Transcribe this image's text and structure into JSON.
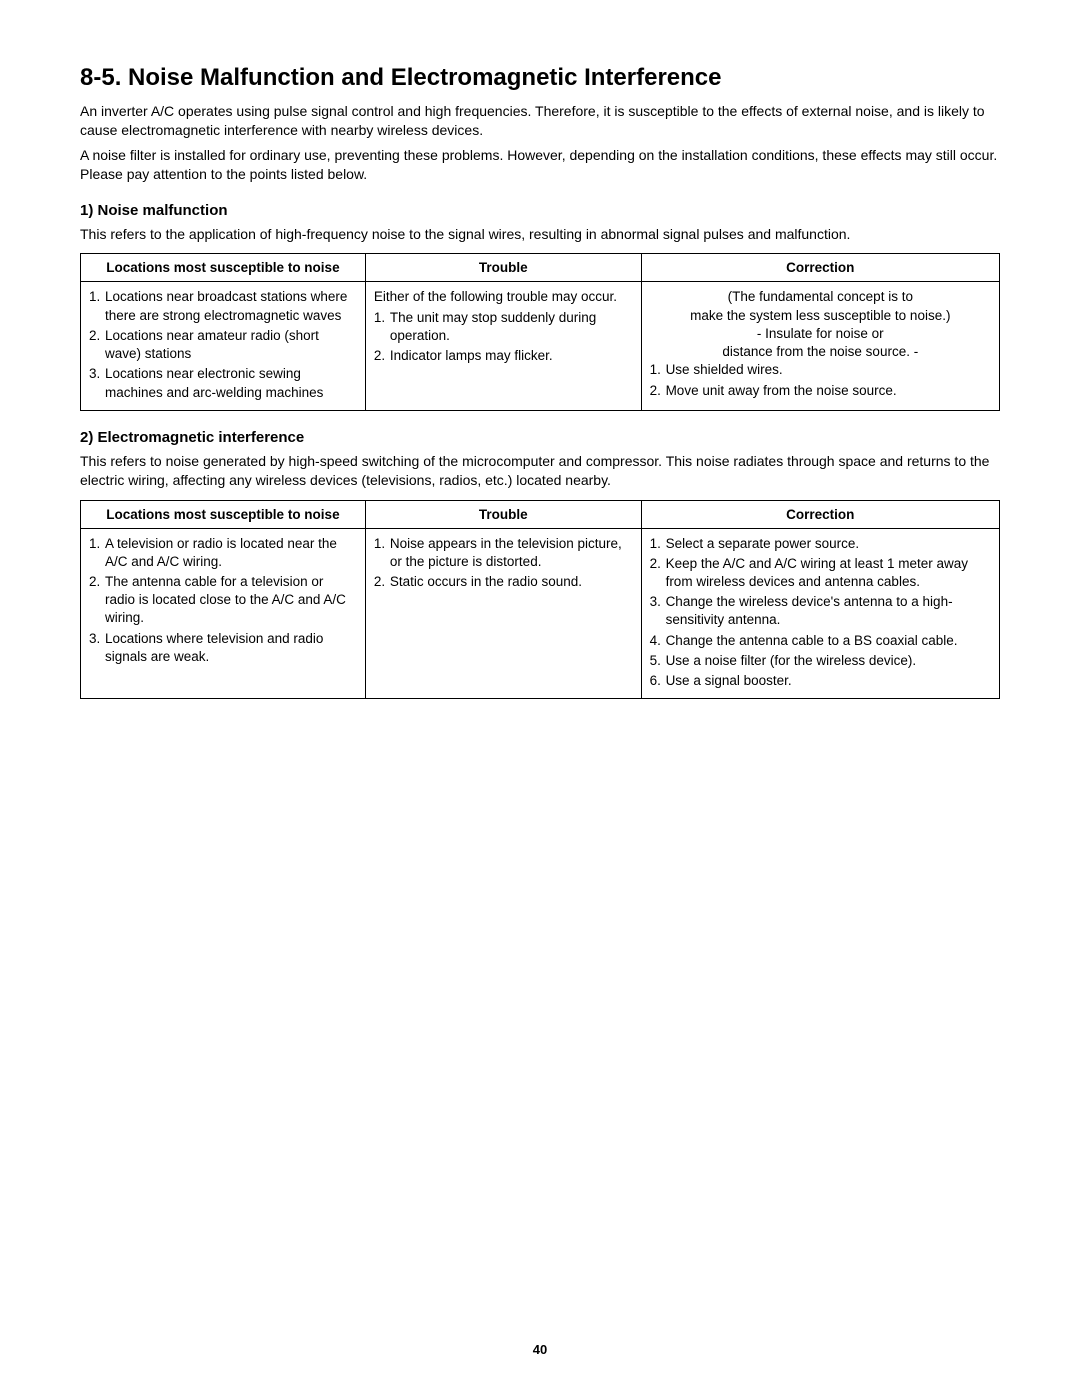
{
  "page_number": "40",
  "title": "8-5.  Noise Malfunction and Electromagnetic Interference",
  "intro": [
    "An inverter A/C operates using pulse signal control and high frequencies. Therefore, it is susceptible to the effects of external noise, and is likely to cause electromagnetic interference with nearby wireless devices.",
    "A noise filter is installed for ordinary use, preventing these problems. However, depending on the installation conditions, these effects may still occur. Please pay attention to the points listed below."
  ],
  "sections": [
    {
      "heading": "1) Noise malfunction",
      "description": "This refers to the application of high-frequency noise to the signal wires, resulting in abnormal signal pulses and malfunction.",
      "table": {
        "headers": [
          "Locations most susceptible to noise",
          "Trouble",
          "Correction"
        ],
        "row": {
          "locations": [
            {
              "n": "1.",
              "t": "Locations near broadcast stations where there are strong electromagnetic waves"
            },
            {
              "n": "2.",
              "t": "Locations near amateur radio (short wave) stations"
            },
            {
              "n": "3.",
              "t": "Locations near electronic sewing machines and arc-welding machines"
            }
          ],
          "trouble": [
            {
              "n": "",
              "t": "Either of the following trouble may occur."
            },
            {
              "n": "1.",
              "t": "The unit may stop suddenly during operation."
            },
            {
              "n": "2.",
              "t": "Indicator lamps may flicker."
            }
          ],
          "correction_center": [
            "(The fundamental concept is to",
            "make the system less susceptible to noise.)",
            "- Insulate for noise or",
            "distance from the noise source. -"
          ],
          "correction_list": [
            {
              "n": "1.",
              "t": "Use shielded wires."
            },
            {
              "n": "2.",
              "t": "Move unit away from the noise source."
            }
          ]
        }
      }
    },
    {
      "heading": "2) Electromagnetic interference",
      "description": "This refers to noise generated by high-speed switching of the microcomputer and compressor. This noise radiates through space and returns to the electric wiring, affecting any wireless devices (televisions, radios, etc.) located nearby.",
      "table": {
        "headers": [
          "Locations most susceptible to noise",
          "Trouble",
          "Correction"
        ],
        "row": {
          "locations": [
            {
              "n": "1.",
              "t": "A television or radio is located near the A/C and A/C wiring."
            },
            {
              "n": "2.",
              "t": "The antenna cable for a television or radio is located close to the A/C and A/C wiring."
            },
            {
              "n": "3.",
              "t": "Locations where television and radio signals are weak."
            }
          ],
          "trouble": [
            {
              "n": "1.",
              "t": "Noise appears in the television picture, or the picture is distorted."
            },
            {
              "n": "2.",
              "t": "Static occurs in the radio sound."
            }
          ],
          "correction_list": [
            {
              "n": "1.",
              "t": "Select a separate power source."
            },
            {
              "n": "2.",
              "t": "Keep the A/C and A/C wiring at least 1 meter away from wireless devices and antenna cables."
            },
            {
              "n": "3.",
              "t": "Change the wireless device's antenna to a high-sensitivity antenna."
            },
            {
              "n": "4.",
              "t": "Change the antenna cable to a BS coaxial cable."
            },
            {
              "n": "5.",
              "t": "Use a noise filter (for the wireless device)."
            },
            {
              "n": "6.",
              "t": "Use a signal booster."
            }
          ]
        }
      }
    }
  ],
  "colors": {
    "text": "#000000",
    "background": "#ffffff",
    "border": "#000000"
  }
}
